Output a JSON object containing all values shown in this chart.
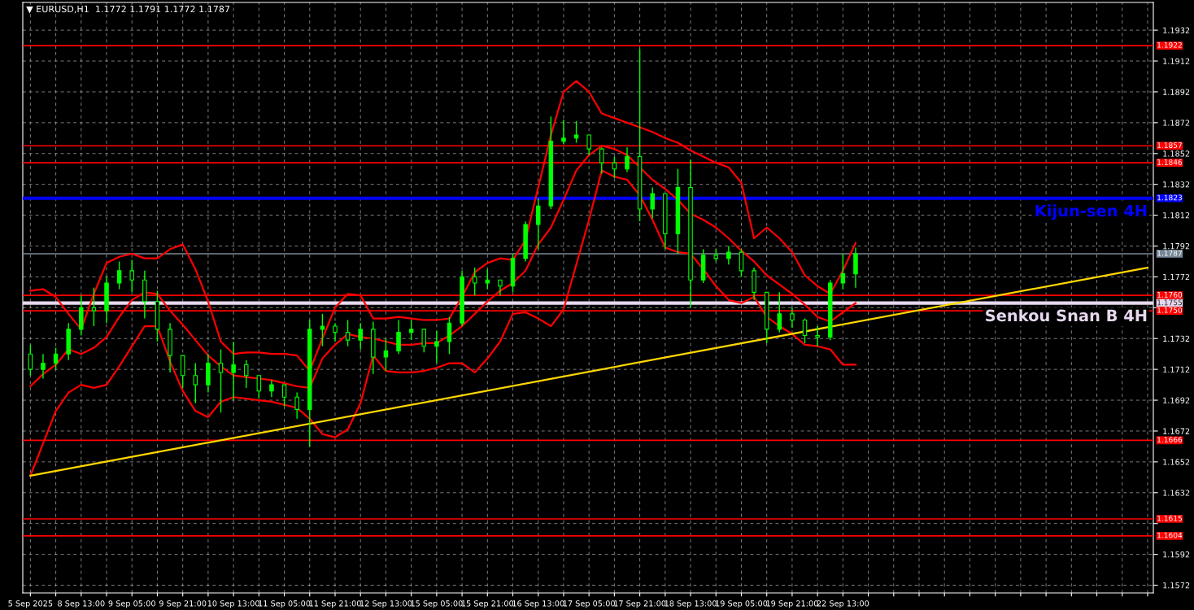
{
  "chart_data": {
    "type": "candlestick",
    "title": "▼ EURUSD,H1  1.1772 1.1791 1.1772 1.1787",
    "categories": [
      "5 Sep 2025",
      null,
      null,
      null,
      "8 Sep 13:00",
      null,
      null,
      null,
      "9 Sep 05:00",
      null,
      null,
      null,
      "9 Sep 21:00",
      null,
      null,
      null,
      "10 Sep 13:00",
      null,
      null,
      null,
      "11 Sep 05:00",
      null,
      null,
      null,
      "11 Sep 21:00",
      null,
      null,
      null,
      "12 Sep 13:00",
      null,
      null,
      null,
      "15 Sep 05:00",
      null,
      null,
      null,
      "15 Sep 21:00",
      null,
      null,
      null,
      "16 Sep 13:00",
      null,
      null,
      null,
      "17 Sep 05:00",
      null,
      null,
      null,
      "17 Sep 21:00",
      null,
      null,
      null,
      "18 Sep 13:00",
      null,
      null,
      null,
      "19 Sep 05:00",
      null,
      null,
      null,
      "19 Sep 21:00",
      null,
      null,
      null,
      "22 Sep 13:00",
      null,
      null,
      null,
      null,
      null,
      null,
      null,
      null,
      null,
      null,
      null,
      null,
      null,
      null,
      null,
      null,
      null,
      null,
      null,
      null,
      null,
      null,
      null,
      null
    ],
    "color": "#00ff00",
    "ohlc": [
      [
        1.1722,
        1.1728,
        1.1708,
        1.1712
      ],
      [
        1.1712,
        1.1722,
        1.1706,
        1.1716
      ],
      [
        1.1716,
        1.1726,
        1.1712,
        1.1722
      ],
      [
        1.1722,
        1.1742,
        1.1718,
        1.1738
      ],
      [
        1.1738,
        1.176,
        1.1734,
        1.1752
      ],
      [
        1.1752,
        1.1765,
        1.174,
        1.175
      ],
      [
        1.175,
        1.1772,
        1.1742,
        1.1768
      ],
      [
        1.1768,
        1.1782,
        1.1764,
        1.1776
      ],
      [
        1.1776,
        1.1783,
        1.1762,
        1.177
      ],
      [
        1.177,
        1.1776,
        1.1745,
        1.1756
      ],
      [
        1.1756,
        1.1763,
        1.173,
        1.1738
      ],
      [
        1.1738,
        1.1742,
        1.171,
        1.1721
      ],
      [
        1.1721,
        1.1721,
        1.17,
        1.1708
      ],
      [
        1.1708,
        1.1716,
        1.169,
        1.1702
      ],
      [
        1.1702,
        1.1722,
        1.1697,
        1.1716
      ],
      [
        1.1716,
        1.1725,
        1.1684,
        1.171
      ],
      [
        1.171,
        1.173,
        1.1692,
        1.1715
      ],
      [
        1.1715,
        1.1718,
        1.17,
        1.1708
      ],
      [
        1.1708,
        1.1708,
        1.1693,
        1.1698
      ],
      [
        1.1698,
        1.1705,
        1.1694,
        1.1702
      ],
      [
        1.1702,
        1.1702,
        1.1688,
        1.1694
      ],
      [
        1.1694,
        1.1697,
        1.168,
        1.1686
      ],
      [
        1.1686,
        1.1744,
        1.1662,
        1.1738
      ],
      [
        1.1738,
        1.1748,
        1.1727,
        1.174
      ],
      [
        1.174,
        1.1742,
        1.173,
        1.1736
      ],
      [
        1.1736,
        1.1744,
        1.1727,
        1.1731
      ],
      [
        1.1731,
        1.1742,
        1.1725,
        1.1738
      ],
      [
        1.1738,
        1.1743,
        1.1709,
        1.172
      ],
      [
        1.172,
        1.1732,
        1.1711,
        1.1724
      ],
      [
        1.1724,
        1.1744,
        1.1722,
        1.1736
      ],
      [
        1.1736,
        1.1744,
        1.1731,
        1.1738
      ],
      [
        1.1738,
        1.1738,
        1.1723,
        1.1727
      ],
      [
        1.1727,
        1.1737,
        1.1716,
        1.173
      ],
      [
        1.173,
        1.1746,
        1.1722,
        1.1742
      ],
      [
        1.1742,
        1.1776,
        1.174,
        1.1772
      ],
      [
        1.1772,
        1.1778,
        1.176,
        1.1768
      ],
      [
        1.1768,
        1.1777,
        1.1764,
        1.177
      ],
      [
        1.177,
        1.177,
        1.176,
        1.1766
      ],
      [
        1.1766,
        1.1787,
        1.1762,
        1.1784
      ],
      [
        1.1784,
        1.1808,
        1.1782,
        1.1806
      ],
      [
        1.1806,
        1.1823,
        1.179,
        1.1818
      ],
      [
        1.1818,
        1.1876,
        1.1816,
        1.186
      ],
      [
        1.186,
        1.1874,
        1.1858,
        1.1862
      ],
      [
        1.1862,
        1.1873,
        1.1859,
        1.1864
      ],
      [
        1.1864,
        1.1864,
        1.1851,
        1.1855
      ],
      [
        1.1855,
        1.1856,
        1.1839,
        1.1846
      ],
      [
        1.1846,
        1.185,
        1.1836,
        1.1842
      ],
      [
        1.1842,
        1.1856,
        1.184,
        1.185
      ],
      [
        1.185,
        1.192,
        1.1808,
        1.1816
      ],
      [
        1.1816,
        1.183,
        1.181,
        1.1826
      ],
      [
        1.1826,
        1.1826,
        1.179,
        1.18
      ],
      [
        1.18,
        1.1842,
        1.1787,
        1.183
      ],
      [
        1.183,
        1.1848,
        1.1752,
        1.177
      ],
      [
        1.177,
        1.179,
        1.1768,
        1.1786
      ],
      [
        1.1786,
        1.179,
        1.1782,
        1.1784
      ],
      [
        1.1784,
        1.1792,
        1.178,
        1.1788
      ],
      [
        1.1788,
        1.179,
        1.1772,
        1.1776
      ],
      [
        1.1776,
        1.1778,
        1.1757,
        1.1762
      ],
      [
        1.1762,
        1.1762,
        1.1729,
        1.1738
      ],
      [
        1.1738,
        1.1762,
        1.1736,
        1.1748
      ],
      [
        1.1748,
        1.1752,
        1.1739,
        1.1744
      ],
      [
        1.1744,
        1.1745,
        1.1729,
        1.1734
      ],
      [
        1.1734,
        1.174,
        1.1727,
        1.1733
      ],
      [
        1.1733,
        1.177,
        1.1731,
        1.1768
      ],
      [
        1.1768,
        1.1787,
        1.1764,
        1.1774
      ],
      [
        1.1774,
        1.1791,
        1.1765,
        1.1787
      ],
      null,
      null,
      null,
      null,
      null,
      null,
      null,
      null,
      null,
      null,
      null,
      null,
      null,
      null,
      null,
      null,
      null,
      null,
      null,
      null,
      null,
      null,
      null
    ],
    "series": [
      {
        "type": "line",
        "color": "#ff0000",
        "values": [
          1.1763,
          1.1764,
          1.1759,
          1.1748,
          1.1738,
          1.1761,
          1.1781,
          1.1785,
          1.1787,
          1.1784,
          1.1784,
          1.179,
          1.1793,
          1.1777,
          1.1756,
          1.173,
          1.1722,
          1.1723,
          1.1723,
          1.1722,
          1.1722,
          1.1721,
          1.1711,
          1.1732,
          1.1752,
          1.1761,
          1.176,
          1.1745,
          1.1745,
          1.1746,
          1.1745,
          1.1744,
          1.1744,
          1.1745,
          1.1759,
          1.1775,
          1.1781,
          1.1784,
          1.1783,
          1.1796,
          1.183,
          1.1864,
          1.1892,
          1.1899,
          1.1892,
          1.1878,
          1.1875,
          1.1872,
          1.1869,
          1.1866,
          1.1862,
          1.1859,
          1.1854,
          1.185,
          1.1846,
          1.1843,
          1.1833,
          1.1797,
          1.1804,
          1.1797,
          1.1788,
          1.1773,
          1.1766,
          1.1761,
          1.1776,
          1.1794,
          null,
          null,
          null,
          null,
          null,
          null,
          null,
          null,
          null,
          null,
          null,
          null,
          null,
          null,
          null,
          null,
          null,
          null,
          null,
          null,
          null,
          null,
          null
        ]
      },
      {
        "type": "line",
        "color": "#ff0000",
        "values": [
          1.1701,
          1.1709,
          1.1715,
          1.1725,
          1.1722,
          1.1726,
          1.1733,
          1.1746,
          1.1757,
          1.1762,
          1.1761,
          1.175,
          1.1741,
          1.1731,
          1.1721,
          1.1714,
          1.1708,
          1.1707,
          1.1706,
          1.1705,
          1.1703,
          1.1701,
          1.17,
          1.1719,
          1.1728,
          1.1735,
          1.1733,
          1.1732,
          1.173,
          1.1728,
          1.1728,
          1.1729,
          1.1729,
          1.1734,
          1.174,
          1.1748,
          1.1756,
          1.1763,
          1.1768,
          1.1776,
          1.1793,
          1.1804,
          1.1822,
          1.1841,
          1.1851,
          1.1857,
          1.1855,
          1.1851,
          1.1843,
          1.1835,
          1.1829,
          1.1822,
          1.1813,
          1.1809,
          1.1804,
          1.1797,
          1.1789,
          1.1782,
          1.1773,
          1.1767,
          1.1761,
          1.1754,
          1.1746,
          1.1743,
          1.1749,
          1.1755,
          null,
          null,
          null,
          null,
          null,
          null,
          null,
          null,
          null,
          null,
          null,
          null,
          null,
          null,
          null,
          null,
          null,
          null,
          null,
          null,
          null,
          null,
          null
        ]
      },
      {
        "type": "line",
        "color": "#ff0000",
        "values": [
          1.1643,
          1.1664,
          1.1685,
          1.1697,
          1.1702,
          1.17,
          1.1702,
          1.1714,
          1.1727,
          1.174,
          1.174,
          1.1717,
          1.1698,
          1.1685,
          1.1681,
          1.1691,
          1.1694,
          1.1693,
          1.1692,
          1.1691,
          1.1689,
          1.1687,
          1.168,
          1.167,
          1.1668,
          1.1673,
          1.169,
          1.1721,
          1.1711,
          1.171,
          1.171,
          1.1711,
          1.1713,
          1.1716,
          1.1716,
          1.171,
          1.1719,
          1.173,
          1.1748,
          1.1749,
          1.1745,
          1.174,
          1.1751,
          1.178,
          1.1809,
          1.1841,
          1.1837,
          1.1835,
          1.1825,
          1.1809,
          1.1791,
          1.1788,
          1.1787,
          1.1777,
          1.1766,
          1.1757,
          1.1755,
          1.1759,
          1.1746,
          1.174,
          1.1735,
          1.1728,
          1.1727,
          1.1725,
          1.1715,
          1.1715,
          null,
          null,
          null,
          null,
          null,
          null,
          null,
          null,
          null,
          null,
          null,
          null,
          null,
          null,
          null,
          null,
          null,
          null,
          null,
          null,
          null,
          null,
          null
        ]
      },
      {
        "type": "line",
        "color": "#ffd700",
        "values": [
          1.1643,
          null,
          null,
          null,
          null,
          null,
          null,
          null,
          null,
          null,
          null,
          null,
          null,
          null,
          null,
          null,
          null,
          null,
          null,
          null,
          null,
          null,
          null,
          null,
          null,
          null,
          null,
          null,
          null,
          null,
          null,
          null,
          null,
          null,
          null,
          null,
          null,
          null,
          null,
          null,
          null,
          null,
          null,
          null,
          null,
          null,
          null,
          null,
          null,
          null,
          null,
          null,
          null,
          null,
          null,
          null,
          null,
          null,
          null,
          null,
          null,
          null,
          null,
          null,
          null,
          null,
          null,
          null,
          null,
          null,
          null,
          null,
          null,
          null,
          null,
          null,
          null,
          null,
          null,
          null,
          null,
          null,
          null,
          null,
          null,
          null,
          null,
          null,
          1.1778
        ]
      }
    ],
    "ref_lines": [
      {
        "axis": "y",
        "value": 1.1922,
        "label": "1.1922",
        "color": "#ff0000"
      },
      {
        "axis": "y",
        "value": 1.1857,
        "label": "1.1857",
        "color": "#ff0000"
      },
      {
        "axis": "y",
        "value": 1.1846,
        "label": "1.1846",
        "color": "#ff0000"
      },
      {
        "axis": "y",
        "value": 1.1823,
        "label": "1.1823",
        "color": "#0000ff"
      },
      {
        "axis": "y",
        "value": 1.1787,
        "label": "1.1787",
        "color": "#778899"
      },
      {
        "axis": "y",
        "value": 1.176,
        "label": "1.1760",
        "color": "#ff0000"
      },
      {
        "axis": "y",
        "value": 1.1755,
        "label": "1.1755",
        "color": "#e6d8ee"
      },
      {
        "axis": "y",
        "value": 1.175,
        "label": "1.1750",
        "color": "#ff0000"
      },
      {
        "axis": "y",
        "value": 1.1666,
        "label": "1.1666",
        "color": "#ff0000"
      },
      {
        "axis": "y",
        "value": 1.1615,
        "label": "1.1615",
        "color": "#ff0000"
      },
      {
        "axis": "y",
        "value": 1.1604,
        "label": "1.1604",
        "color": "#ff0000"
      }
    ],
    "annotations": [
      {
        "text": "Kijun-sen 4H",
        "y": 1.1823
      },
      {
        "text": "Senkou Snan B 4H",
        "y": 1.1755
      }
    ],
    "ylim": [
      1.1567,
      1.195
    ],
    "yticks": [
      1.1572,
      1.1592,
      {
        "value": 1.1612,
        "label": null
      },
      1.1632,
      1.1652,
      1.1672,
      1.1692,
      1.1712,
      1.1732,
      {
        "value": 1.1752,
        "label": null
      },
      1.1772,
      1.1792,
      1.1812,
      1.1832,
      1.1852,
      1.1872,
      1.1892,
      1.1912,
      1.1932
    ],
    "grid": true,
    "legend": false
  }
}
